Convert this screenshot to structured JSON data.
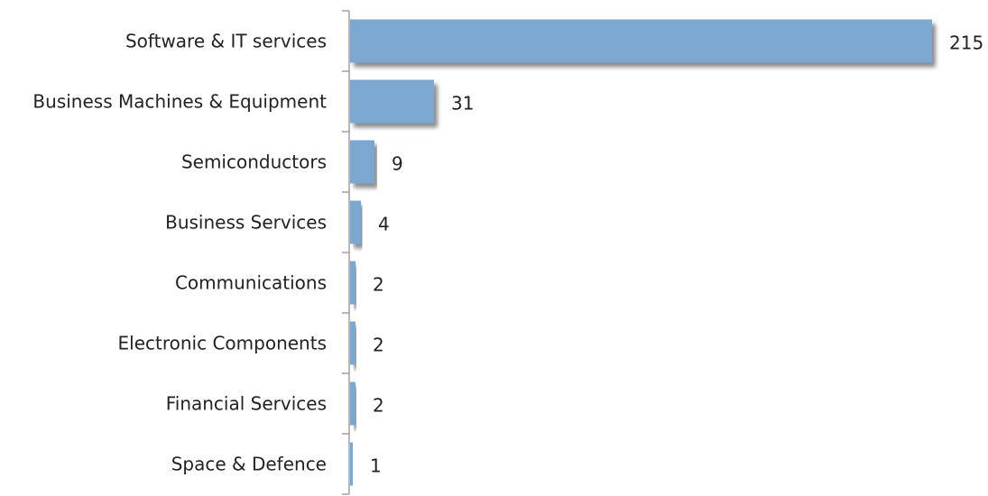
{
  "chart_data": {
    "type": "bar",
    "orientation": "horizontal",
    "categories": [
      "Software & IT services",
      "Business Machines & Equipment",
      "Semiconductors",
      "Business Services",
      "Communications",
      "Electronic Components",
      "Financial Services",
      "Space & Defence"
    ],
    "values": [
      215,
      31,
      9,
      4,
      2,
      2,
      2,
      1
    ],
    "value_labels": [
      "215",
      "31",
      "9",
      "4",
      "2",
      "2",
      "2",
      "1"
    ],
    "title": "",
    "xlabel": "",
    "ylabel": "",
    "xlim": [
      0,
      215
    ],
    "grid": false,
    "legend": "none",
    "bar_color": "#7ba7d0",
    "bar_shadow_color": "#8c8c8c",
    "axis_color": "#a0a0a0"
  }
}
